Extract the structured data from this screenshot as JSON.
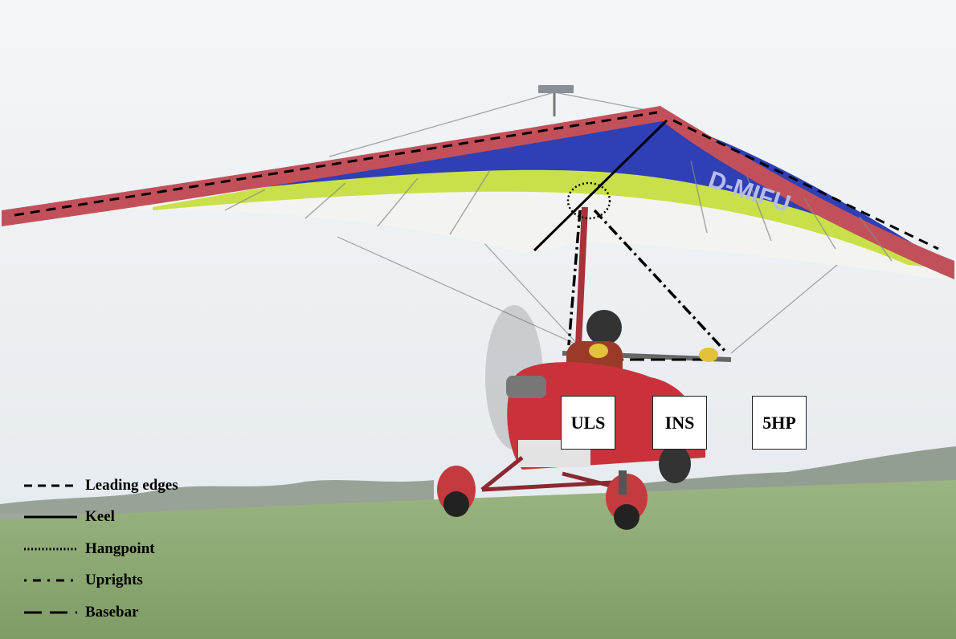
{
  "wing": {
    "registration": "D-MIFU"
  },
  "labels": {
    "uls": "ULS",
    "ins": "INS",
    "shp": "5HP"
  },
  "legend": {
    "items": [
      {
        "label": "Leading edges",
        "style": "dashed"
      },
      {
        "label": "Keel",
        "style": "solid"
      },
      {
        "label": "Hangpoint",
        "style": "dotted"
      },
      {
        "label": "Uprights",
        "style": "dash-dot"
      },
      {
        "label": "Basebar",
        "style": "long-dash"
      }
    ]
  },
  "colors": {
    "sky": "#eef2f6",
    "grass": "#8aa672",
    "leading_edge": "#c2505a",
    "sail_blue": "#2f3fb6",
    "sail_yellow": "#c9e04a",
    "trike_red": "#c9323a"
  }
}
